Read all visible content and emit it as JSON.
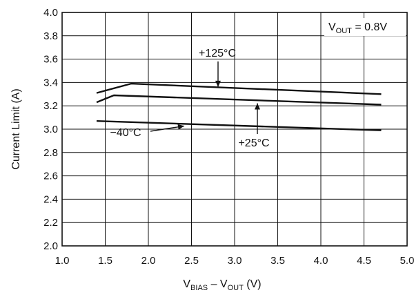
{
  "chart_data": {
    "type": "line",
    "title": "",
    "xlabel": {
      "prefix": "V",
      "sub1": "BIAS",
      "mid": " – V",
      "sub2": "OUT",
      "suffix": " (V)"
    },
    "ylabel": "Current Limit (A)",
    "xlim": [
      1.0,
      5.0
    ],
    "ylim": [
      2.0,
      4.0
    ],
    "xticks": [
      "1.0",
      "1.5",
      "2.0",
      "2.5",
      "3.0",
      "3.5",
      "4.0",
      "4.5",
      "5.0"
    ],
    "yticks": [
      "2.0",
      "2.2",
      "2.4",
      "2.6",
      "2.8",
      "3.0",
      "3.2",
      "3.4",
      "3.6",
      "3.8",
      "4.0"
    ],
    "grid": true,
    "condition": {
      "prefix": "V",
      "sub": "OUT",
      "suffix": " = 0.8V"
    },
    "series": [
      {
        "name": "+125°C",
        "points": [
          [
            1.4,
            3.31
          ],
          [
            1.8,
            3.39
          ],
          [
            4.7,
            3.3
          ]
        ]
      },
      {
        "name": "+25°C",
        "points": [
          [
            1.4,
            3.23
          ],
          [
            1.6,
            3.29
          ],
          [
            4.7,
            3.21
          ]
        ]
      },
      {
        "name": "−40°C",
        "points": [
          [
            1.4,
            3.07
          ],
          [
            4.7,
            2.99
          ]
        ]
      }
    ]
  }
}
